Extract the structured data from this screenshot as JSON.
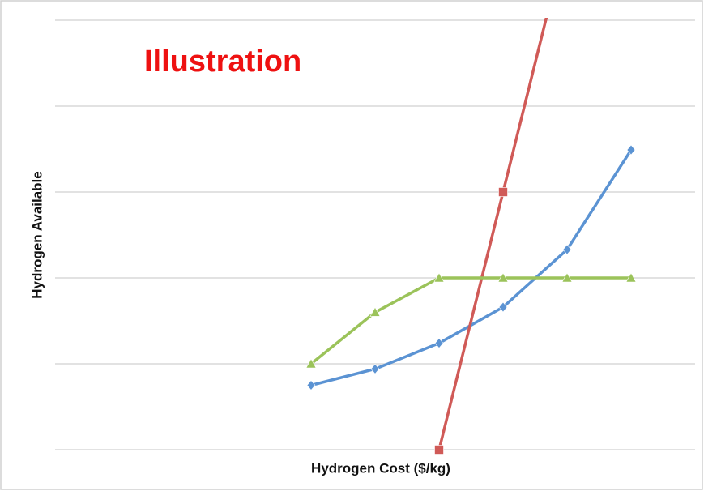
{
  "chart_data": {
    "type": "line",
    "title": "Illustration",
    "xlabel": "Hydrogen Cost ($/kg)",
    "ylabel": "Hydrogen Available",
    "xlim": [
      0,
      10
    ],
    "ylim": [
      0,
      5
    ],
    "yticks": [
      0,
      1,
      2,
      3,
      4,
      5
    ],
    "grid": true,
    "series": [
      {
        "color": "#5b93d3",
        "marker": "diamond",
        "x": [
          4,
          5,
          6,
          7,
          8,
          9
        ],
        "values": [
          0.75,
          0.94,
          1.24,
          1.66,
          2.33,
          3.49
        ]
      },
      {
        "color": "#d05a57",
        "marker": "square",
        "x": [
          6,
          7,
          8
        ],
        "values": [
          0,
          3,
          6
        ]
      },
      {
        "color": "#9bc35a",
        "marker": "triangle",
        "x": [
          4,
          5,
          6,
          7,
          8,
          9
        ],
        "values": [
          1,
          1.6,
          2,
          2,
          2,
          2
        ]
      }
    ]
  }
}
